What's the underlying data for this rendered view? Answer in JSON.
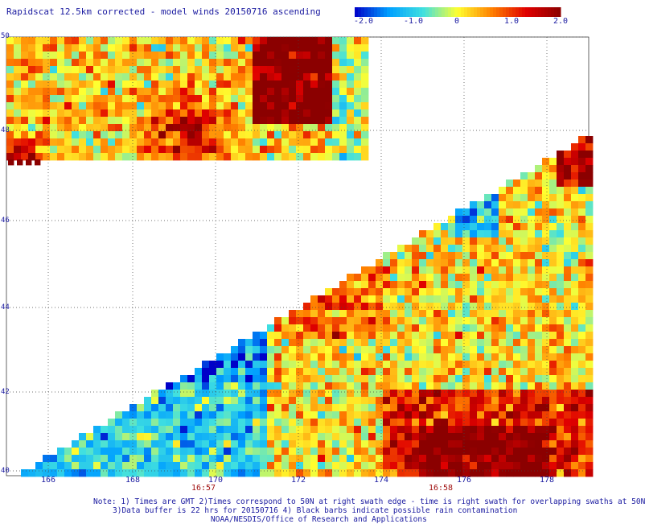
{
  "title": "Rapidscat 12.5km corrected - model winds 20150716 ascending",
  "colorbar": {
    "ticks": [
      "-2.0",
      "-1.0",
      "0",
      "1.0",
      "2.0"
    ],
    "range": [
      -2.0,
      2.0
    ],
    "colors": [
      "#0000c8",
      "#00a0ff",
      "#40e0e0",
      "#ffff30",
      "#ff8000",
      "#e00000",
      "#8b0000"
    ]
  },
  "map": {
    "lat_labels": [
      "50",
      "48",
      "46",
      "44",
      "42",
      "40"
    ],
    "lon_labels": [
      "166",
      "168",
      "170",
      "172",
      "174",
      "176",
      "178"
    ],
    "time_labels": [
      "16:57",
      "16:58"
    ],
    "grid": "dotted"
  },
  "notes": [
    "Note: 1) Times are GMT 2)Times correspond to 50N at right swath edge - time is right swath for overlapping swaths at 50N",
    "3)Data buffer is 22 hrs for 20150716 4) Black barbs indicate possible rain contamination",
    "NOAA/NESDIS/Office of Research and Applications"
  ]
}
